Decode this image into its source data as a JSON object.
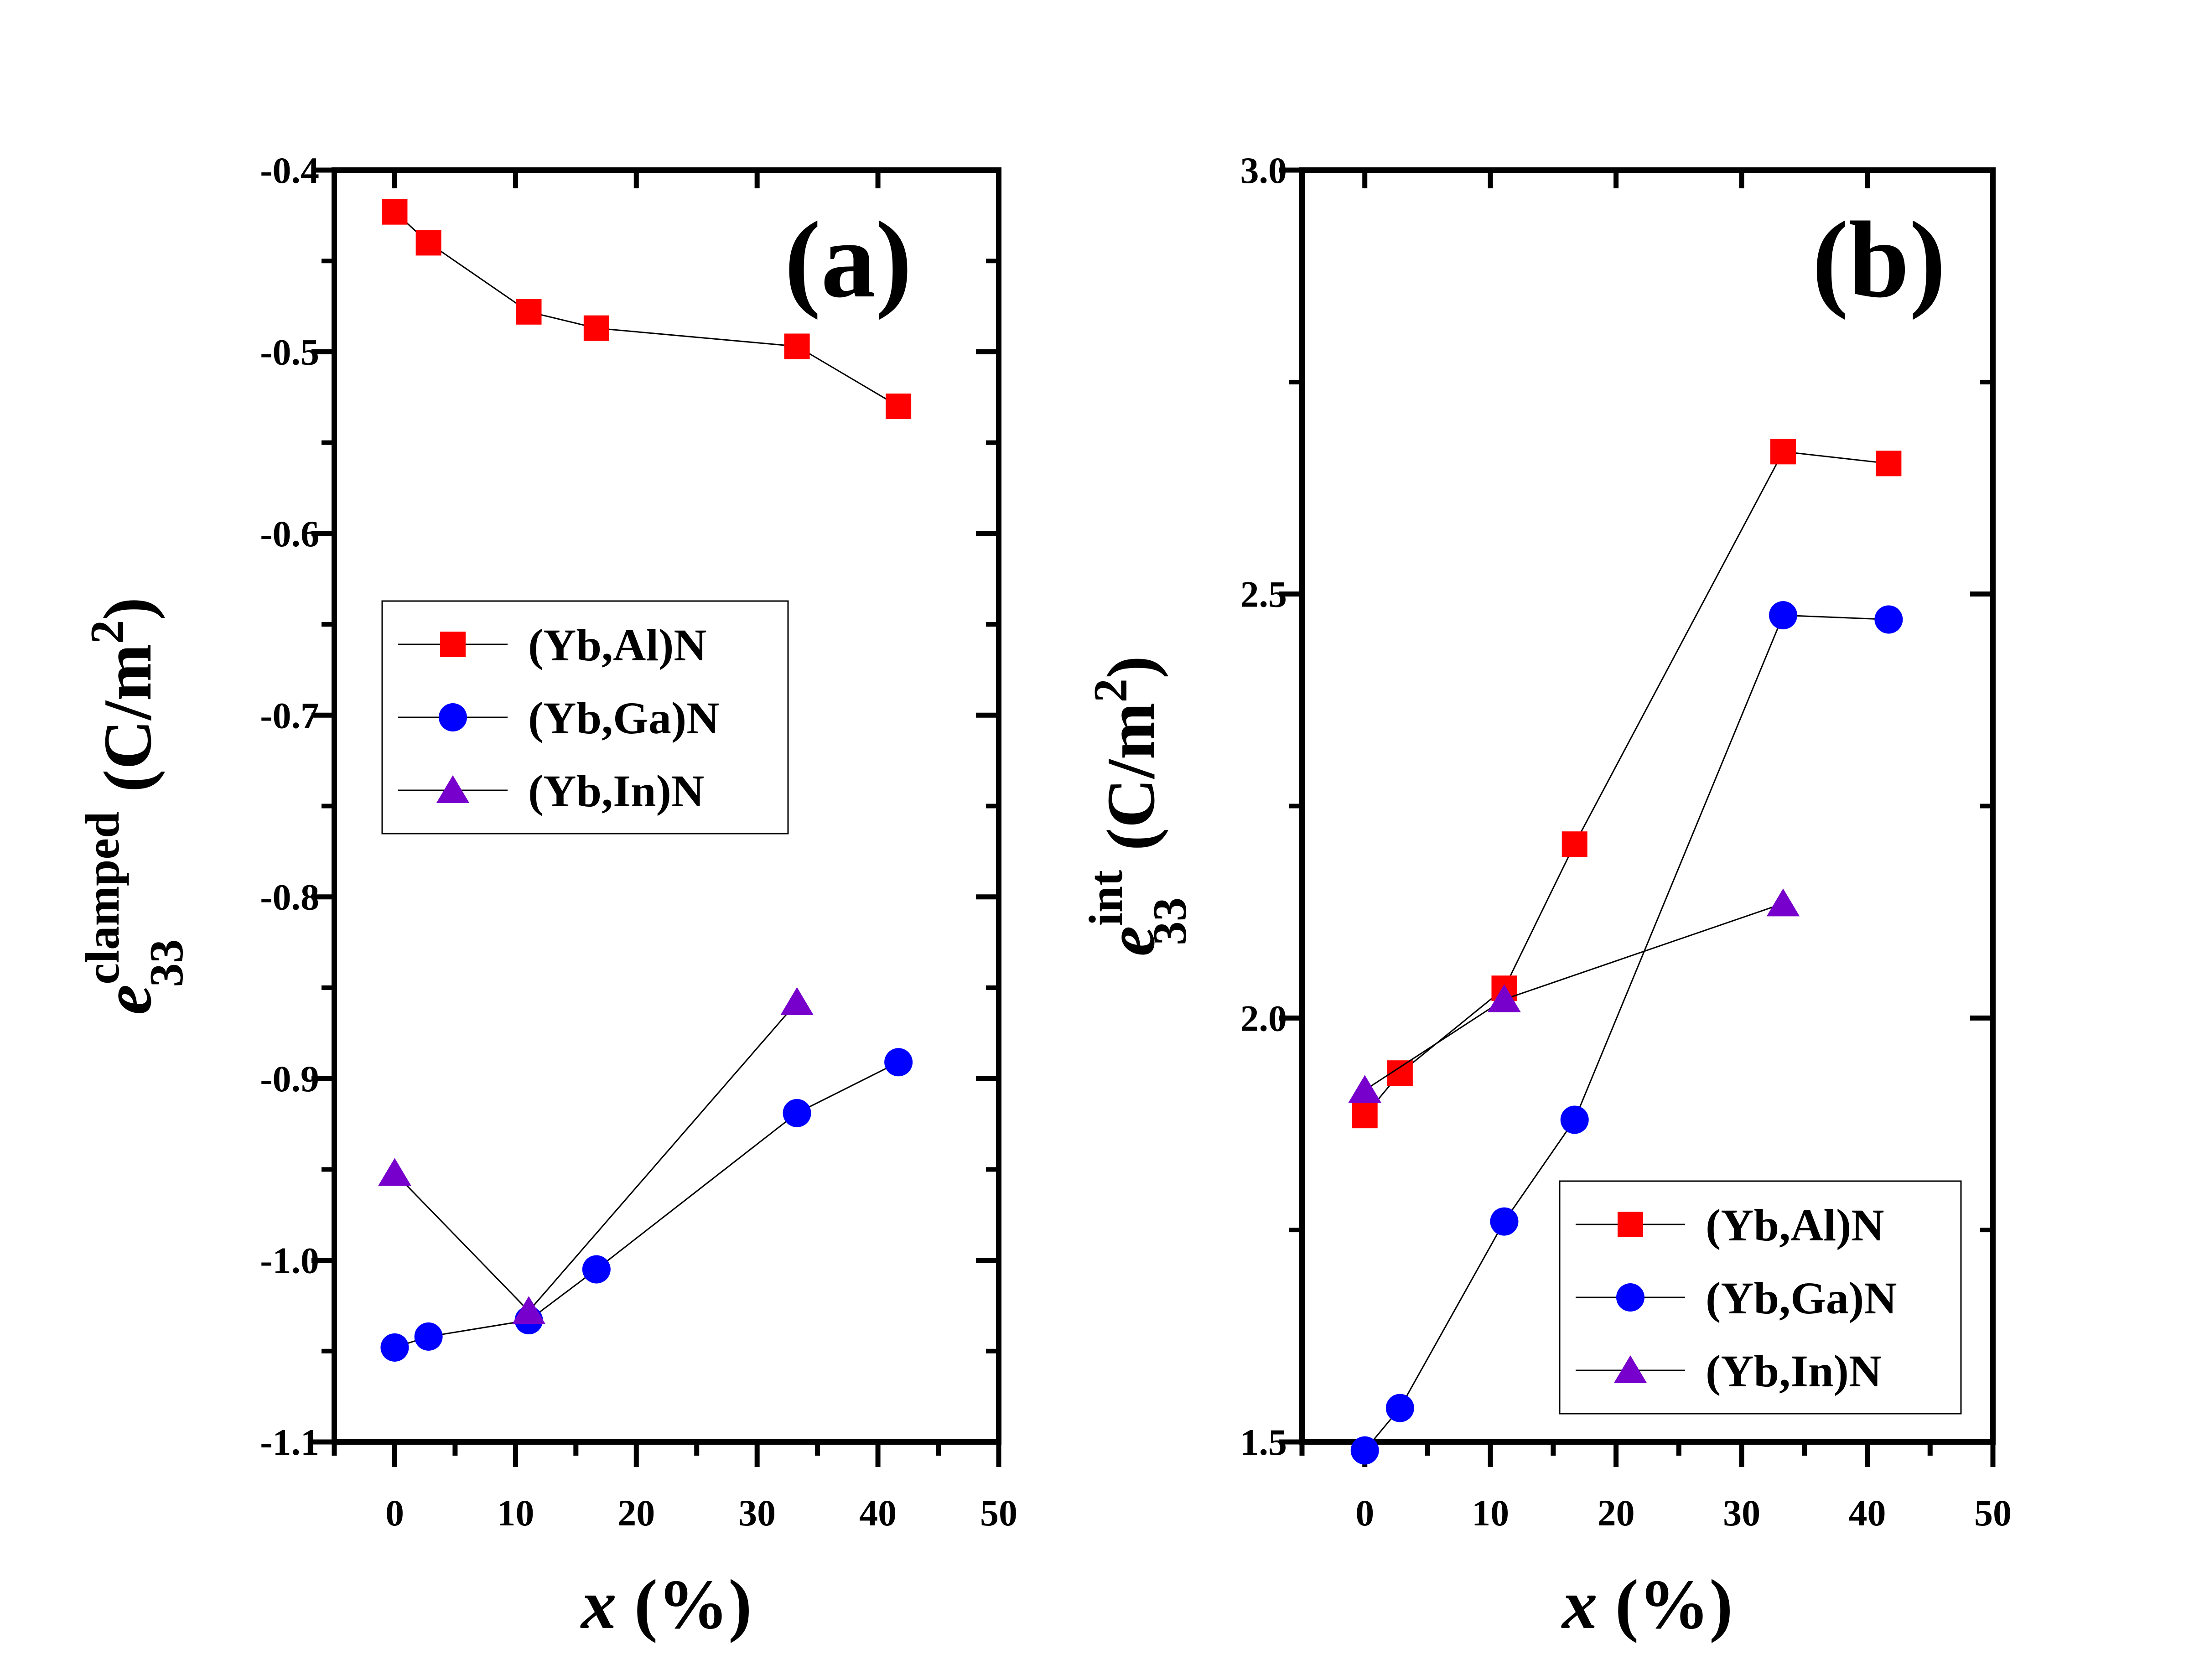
{
  "figure": {
    "background": "#ffffff"
  },
  "chart_data": [
    {
      "type": "line",
      "panel_label": "(a)",
      "xlabel_var": "x",
      "xlabel_unit": " (%)",
      "ylabel_var": "e",
      "ylabel_sup": "clamped",
      "ylabel_sub": "33",
      "ylabel_unit_open": " (C/m",
      "ylabel_unit_sup": "2",
      "ylabel_unit_close": ")",
      "xlim": [
        -5,
        50
      ],
      "ylim": [
        -1.1,
        -0.4
      ],
      "xticks": [
        0,
        10,
        20,
        30,
        40,
        50
      ],
      "xtick_labels": [
        "0",
        "10",
        "20",
        "30",
        "40",
        "50"
      ],
      "yticks": [
        -1.1,
        -1.0,
        -0.9,
        -0.8,
        -0.7,
        -0.6,
        -0.5,
        -0.4
      ],
      "ytick_labels": [
        "-1.1",
        "-1.0",
        "-0.9",
        "-0.8",
        "-0.7",
        "-0.6",
        "-0.5",
        "-0.4"
      ],
      "legend_position": "center-left",
      "series": [
        {
          "name": "(Yb,Al)N",
          "marker": "square",
          "color": "#ff0000",
          "x": [
            0,
            2.8,
            11.1,
            16.7,
            33.3,
            41.7
          ],
          "y": [
            -0.423,
            -0.44,
            -0.478,
            -0.487,
            -0.497,
            -0.53
          ]
        },
        {
          "name": "(Yb,Ga)N",
          "marker": "circle",
          "color": "#0000ff",
          "x": [
            0,
            2.8,
            11.1,
            16.7,
            33.3,
            41.7
          ],
          "y": [
            -1.048,
            -1.042,
            -1.033,
            -1.005,
            -0.919,
            -0.891
          ]
        },
        {
          "name": "(Yb,In)N",
          "marker": "triangle",
          "color": "#7700cc",
          "x": [
            0,
            11.1,
            33.3
          ],
          "y": [
            -0.952,
            -1.028,
            -0.858
          ]
        }
      ]
    },
    {
      "type": "line",
      "panel_label": "(b)",
      "xlabel_var": "x",
      "xlabel_unit": "  (%)",
      "ylabel_var": "e",
      "ylabel_sup": "int",
      "ylabel_sub": "33",
      "ylabel_unit_open": " (C/m",
      "ylabel_unit_sup": "2",
      "ylabel_unit_close": ")",
      "xlim": [
        -5,
        50
      ],
      "ylim": [
        1.5,
        3.0
      ],
      "xticks": [
        0,
        10,
        20,
        30,
        40,
        50
      ],
      "xtick_labels": [
        "0",
        "10",
        "20",
        "30",
        "40",
        "50"
      ],
      "yticks": [
        1.5,
        2.0,
        2.5,
        3.0
      ],
      "ytick_labels": [
        "1.5",
        "2.0",
        "2.5",
        "3.0"
      ],
      "legend_position": "bottom-right",
      "series": [
        {
          "name": "(Yb,Al)N",
          "marker": "square",
          "color": "#ff0000",
          "x": [
            0,
            2.8,
            11.1,
            16.7,
            33.3,
            41.7
          ],
          "y": [
            1.885,
            1.935,
            2.035,
            2.205,
            2.668,
            2.654
          ]
        },
        {
          "name": "(Yb,Ga)N",
          "marker": "circle",
          "color": "#0000ff",
          "x": [
            0,
            2.8,
            11.1,
            16.7,
            33.3,
            41.7
          ],
          "y": [
            1.49,
            1.54,
            1.76,
            1.88,
            2.475,
            2.47
          ]
        },
        {
          "name": "(Yb,In)N",
          "marker": "triangle",
          "color": "#7700cc",
          "x": [
            0,
            11.1,
            33.3
          ],
          "y": [
            1.915,
            2.022,
            2.135
          ]
        }
      ]
    }
  ]
}
